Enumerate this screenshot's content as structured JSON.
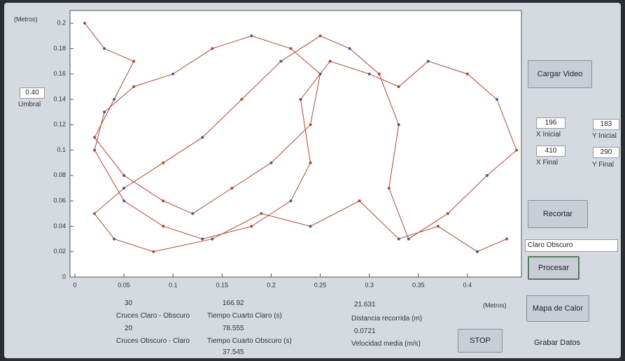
{
  "chart_data": {
    "type": "line",
    "ylabel": "(Metros)",
    "xlabel": "(Metros)",
    "x": [
      0.01,
      0.03,
      0.06,
      0.04,
      0.02,
      0.05,
      0.09,
      0.12,
      0.16,
      0.2,
      0.24,
      0.25,
      0.22,
      0.18,
      0.14,
      0.1,
      0.06,
      0.03,
      0.02,
      0.05,
      0.09,
      0.13,
      0.18,
      0.22,
      0.24,
      0.23,
      0.26,
      0.3,
      0.33,
      0.36,
      0.4,
      0.43,
      0.45,
      0.42,
      0.38,
      0.34,
      0.32,
      0.33,
      0.31,
      0.28,
      0.25,
      0.21,
      0.17,
      0.13,
      0.09,
      0.05,
      0.02,
      0.04,
      0.08,
      0.14,
      0.19,
      0.24,
      0.29,
      0.33,
      0.37,
      0.41,
      0.44
    ],
    "values": [
      0.2,
      0.18,
      0.17,
      0.14,
      0.11,
      0.08,
      0.06,
      0.05,
      0.07,
      0.09,
      0.12,
      0.16,
      0.18,
      0.19,
      0.18,
      0.16,
      0.15,
      0.13,
      0.1,
      0.06,
      0.04,
      0.03,
      0.04,
      0.06,
      0.09,
      0.14,
      0.17,
      0.16,
      0.15,
      0.17,
      0.16,
      0.14,
      0.1,
      0.08,
      0.05,
      0.03,
      0.07,
      0.12,
      0.16,
      0.18,
      0.19,
      0.17,
      0.14,
      0.11,
      0.09,
      0.07,
      0.05,
      0.03,
      0.02,
      0.03,
      0.05,
      0.04,
      0.06,
      0.03,
      0.04,
      0.02,
      0.03
    ],
    "color": "#b2452f",
    "marker_color": "#3d5f8f",
    "xlim": [
      -0.005,
      0.455
    ],
    "ylim": [
      0,
      0.21
    ],
    "xticks": [
      0,
      0.05,
      0.1,
      0.15,
      0.2,
      0.25,
      0.3,
      0.35,
      0.4
    ],
    "yticks": [
      0,
      0.02,
      0.04,
      0.06,
      0.08,
      0.1,
      0.12,
      0.14,
      0.16,
      0.18,
      0.2
    ]
  },
  "ui": {
    "umbral_value": "0.40",
    "umbral_label": "Umbral",
    "load_button": "Cargar Video",
    "x_inicial": "196",
    "x_inicial_label": "X Inicial",
    "y_inicial": "183",
    "y_inicial_label": "Y Inicial",
    "x_final": "410",
    "x_final_label": "X Final",
    "y_final": "290",
    "y_final_label": "Y Final",
    "crop_button": "Recortar",
    "mode_select": "Claro Obscuro",
    "process_button": "Procesar",
    "heatmap_button": "Mapa de Calor",
    "save_button": "Grabar Datos",
    "stop_button": "STOP",
    "cruces_claro_obscuro": "30",
    "cruces_claro_obscuro_label": "Cruces Claro - Obscuro",
    "cruces_obscuro_claro": "20",
    "cruces_obscuro_claro_label": "Cruces Obscuro - Claro",
    "tiempo_claro": "166.92",
    "tiempo_claro_label": "Tiempo Cuarto Claro (s)",
    "tiempo_obscuro": "78.555",
    "tiempo_obscuro_label": "Tiempo Cuarto Obscuro (s)",
    "tiempo_extra": "37.545",
    "distancia": "21.631",
    "distancia_label": "Distancia recorrida (m)",
    "velocidad": "0.0721",
    "velocidad_label": "Velocidad media (m/s)"
  }
}
